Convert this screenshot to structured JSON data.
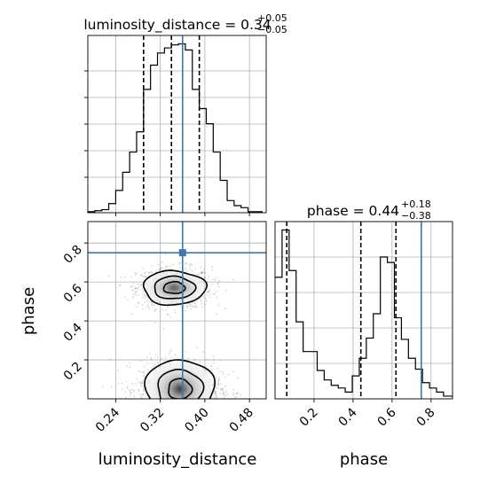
{
  "chart_data": {
    "type": "corner",
    "parameters": [
      "luminosity_distance",
      "phase"
    ],
    "axis_labels": {
      "x_left": "luminosity_distance",
      "y_left": "phase",
      "x_right": "phase"
    },
    "truth_color": "#3b78b0",
    "histogram_luminosity_distance": {
      "title_main": "luminosity_distance = 0.34",
      "title_sup": "+0.05",
      "title_sub": "−0.05",
      "xlim": [
        0.19,
        0.51
      ],
      "ticks": [
        0.24,
        0.32,
        0.4,
        0.48
      ],
      "tick_labels": [
        "0.24",
        "0.32",
        "0.40",
        "0.48"
      ],
      "quantiles": [
        0.29,
        0.34,
        0.39
      ],
      "truth": 0.36,
      "bin_edges": [
        0.19,
        0.2025,
        0.215,
        0.2275,
        0.24,
        0.2525,
        0.265,
        0.2775,
        0.29,
        0.3025,
        0.315,
        0.3275,
        0.34,
        0.3525,
        0.365,
        0.3775,
        0.39,
        0.4025,
        0.415,
        0.4275,
        0.44,
        0.4525,
        0.465,
        0.4775,
        0.49,
        0.5025
      ],
      "counts": [
        1,
        2,
        3,
        9,
        22,
        40,
        60,
        80,
        122,
        146,
        158,
        163,
        166,
        167,
        161,
        122,
        103,
        88,
        60,
        32,
        12,
        7,
        5,
        1,
        1
      ]
    },
    "scatter_phase_vs_luminosity_distance": {
      "xlim": [
        0.19,
        0.51
      ],
      "ylim": [
        0.0,
        0.91
      ],
      "xticks": [
        0.24,
        0.32,
        0.4,
        0.48
      ],
      "xtick_labels": [
        "0.24",
        "0.32",
        "0.40",
        "0.48"
      ],
      "yticks": [
        0.2,
        0.4,
        0.6,
        0.8
      ],
      "ytick_labels": [
        "0.2",
        "0.4",
        "0.6",
        "0.8"
      ],
      "truth": {
        "x": 0.36,
        "y": 0.75
      },
      "modes": [
        {
          "x": 0.345,
          "y": 0.57,
          "sx": 0.032,
          "sy": 0.05
        },
        {
          "x": 0.355,
          "y": 0.05,
          "sx": 0.035,
          "sy": 0.07
        }
      ]
    },
    "histogram_phase": {
      "title_main": "phase = 0.44",
      "title_sup": "+0.18",
      "title_sub": "−0.38",
      "xlim": [
        0.0,
        0.91
      ],
      "ticks": [
        0.2,
        0.4,
        0.6,
        0.8
      ],
      "tick_labels": [
        "0.2",
        "0.4",
        "0.6",
        "0.8"
      ],
      "quantiles": [
        0.06,
        0.44,
        0.62
      ],
      "truth": 0.75,
      "bin_edges": [
        0.0,
        0.036,
        0.072,
        0.108,
        0.144,
        0.18,
        0.216,
        0.252,
        0.288,
        0.324,
        0.36,
        0.396,
        0.432,
        0.468,
        0.504,
        0.54,
        0.576,
        0.612,
        0.648,
        0.684,
        0.72,
        0.756,
        0.792,
        0.828,
        0.864,
        0.91
      ],
      "counts": [
        90,
        125,
        95,
        57,
        35,
        35,
        21,
        14,
        10,
        8,
        5,
        17,
        30,
        45,
        63,
        105,
        101,
        60,
        44,
        30,
        22,
        12,
        8,
        5,
        2
      ]
    }
  }
}
